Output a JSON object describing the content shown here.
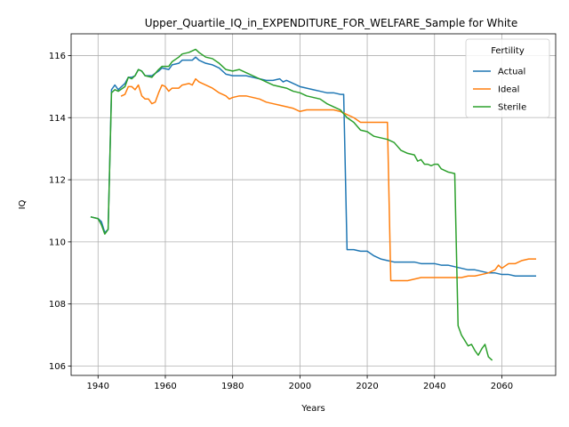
{
  "chart_data": {
    "type": "line",
    "title": "Upper_Quartile_IQ_in_EXPENDITURE_FOR_WELFARE_Sample for White",
    "xlabel": "Years",
    "ylabel": "IQ",
    "xlim": [
      1932,
      2076
    ],
    "ylim": [
      105.7,
      116.7
    ],
    "xticks": [
      1940,
      1960,
      1980,
      2000,
      2020,
      2040,
      2060
    ],
    "yticks": [
      106,
      108,
      110,
      112,
      114,
      116
    ],
    "grid": true,
    "legend": {
      "title": "Fertility",
      "placement": "top-right"
    },
    "series": [
      {
        "name": "Actual",
        "color": "#1f77b4",
        "points": [
          [
            1938,
            110.8
          ],
          [
            1940,
            110.75
          ],
          [
            1941,
            110.65
          ],
          [
            1942,
            110.3
          ],
          [
            1943,
            110.4
          ],
          [
            1944,
            114.9
          ],
          [
            1945,
            115.05
          ],
          [
            1946,
            114.9
          ],
          [
            1948,
            115.1
          ],
          [
            1949,
            115.3
          ],
          [
            1950,
            115.3
          ],
          [
            1951,
            115.35
          ],
          [
            1952,
            115.55
          ],
          [
            1953,
            115.5
          ],
          [
            1954,
            115.35
          ],
          [
            1956,
            115.35
          ],
          [
            1958,
            115.5
          ],
          [
            1959,
            115.6
          ],
          [
            1961,
            115.55
          ],
          [
            1962,
            115.7
          ],
          [
            1964,
            115.75
          ],
          [
            1965,
            115.85
          ],
          [
            1967,
            115.85
          ],
          [
            1968,
            115.85
          ],
          [
            1969,
            115.95
          ],
          [
            1970,
            115.85
          ],
          [
            1972,
            115.75
          ],
          [
            1974,
            115.7
          ],
          [
            1976,
            115.6
          ],
          [
            1978,
            115.4
          ],
          [
            1980,
            115.35
          ],
          [
            1982,
            115.35
          ],
          [
            1984,
            115.35
          ],
          [
            1986,
            115.3
          ],
          [
            1988,
            115.25
          ],
          [
            1990,
            115.2
          ],
          [
            1992,
            115.2
          ],
          [
            1994,
            115.25
          ],
          [
            1995,
            115.15
          ],
          [
            1996,
            115.2
          ],
          [
            1998,
            115.1
          ],
          [
            2000,
            115.0
          ],
          [
            2002,
            114.95
          ],
          [
            2004,
            114.9
          ],
          [
            2006,
            114.85
          ],
          [
            2008,
            114.8
          ],
          [
            2010,
            114.8
          ],
          [
            2012,
            114.75
          ],
          [
            2013,
            114.75
          ],
          [
            2014,
            109.75
          ],
          [
            2016,
            109.75
          ],
          [
            2018,
            109.7
          ],
          [
            2020,
            109.7
          ],
          [
            2022,
            109.55
          ],
          [
            2024,
            109.45
          ],
          [
            2026,
            109.4
          ],
          [
            2028,
            109.35
          ],
          [
            2030,
            109.35
          ],
          [
            2032,
            109.35
          ],
          [
            2034,
            109.35
          ],
          [
            2036,
            109.3
          ],
          [
            2038,
            109.3
          ],
          [
            2040,
            109.3
          ],
          [
            2042,
            109.25
          ],
          [
            2044,
            109.25
          ],
          [
            2046,
            109.2
          ],
          [
            2048,
            109.15
          ],
          [
            2050,
            109.1
          ],
          [
            2052,
            109.1
          ],
          [
            2054,
            109.05
          ],
          [
            2056,
            109.0
          ],
          [
            2058,
            109.0
          ],
          [
            2060,
            108.95
          ],
          [
            2062,
            108.95
          ],
          [
            2064,
            108.9
          ],
          [
            2066,
            108.9
          ],
          [
            2068,
            108.9
          ],
          [
            2070,
            108.9
          ]
        ]
      },
      {
        "name": "Ideal",
        "color": "#ff7f0e",
        "points": [
          [
            1947,
            114.7
          ],
          [
            1948,
            114.75
          ],
          [
            1949,
            115.0
          ],
          [
            1950,
            115.0
          ],
          [
            1951,
            114.9
          ],
          [
            1952,
            115.05
          ],
          [
            1953,
            114.7
          ],
          [
            1954,
            114.6
          ],
          [
            1955,
            114.6
          ],
          [
            1956,
            114.45
          ],
          [
            1957,
            114.5
          ],
          [
            1958,
            114.8
          ],
          [
            1959,
            115.05
          ],
          [
            1960,
            115.0
          ],
          [
            1961,
            114.85
          ],
          [
            1962,
            114.95
          ],
          [
            1964,
            114.95
          ],
          [
            1965,
            115.05
          ],
          [
            1967,
            115.1
          ],
          [
            1968,
            115.05
          ],
          [
            1969,
            115.25
          ],
          [
            1970,
            115.15
          ],
          [
            1972,
            115.05
          ],
          [
            1974,
            114.95
          ],
          [
            1976,
            114.8
          ],
          [
            1978,
            114.7
          ],
          [
            1979,
            114.6
          ],
          [
            1980,
            114.65
          ],
          [
            1982,
            114.7
          ],
          [
            1984,
            114.7
          ],
          [
            1986,
            114.65
          ],
          [
            1988,
            114.6
          ],
          [
            1990,
            114.5
          ],
          [
            1992,
            114.45
          ],
          [
            1994,
            114.4
          ],
          [
            1996,
            114.35
          ],
          [
            1998,
            114.3
          ],
          [
            2000,
            114.2
          ],
          [
            2002,
            114.25
          ],
          [
            2004,
            114.25
          ],
          [
            2006,
            114.25
          ],
          [
            2008,
            114.25
          ],
          [
            2010,
            114.25
          ],
          [
            2012,
            114.2
          ],
          [
            2014,
            114.1
          ],
          [
            2016,
            114.0
          ],
          [
            2018,
            113.85
          ],
          [
            2020,
            113.85
          ],
          [
            2022,
            113.85
          ],
          [
            2024,
            113.85
          ],
          [
            2026,
            113.85
          ],
          [
            2027,
            108.75
          ],
          [
            2028,
            108.75
          ],
          [
            2030,
            108.75
          ],
          [
            2032,
            108.75
          ],
          [
            2034,
            108.8
          ],
          [
            2036,
            108.85
          ],
          [
            2038,
            108.85
          ],
          [
            2040,
            108.85
          ],
          [
            2042,
            108.85
          ],
          [
            2044,
            108.85
          ],
          [
            2046,
            108.85
          ],
          [
            2048,
            108.85
          ],
          [
            2050,
            108.9
          ],
          [
            2052,
            108.9
          ],
          [
            2054,
            108.95
          ],
          [
            2056,
            109.0
          ],
          [
            2058,
            109.1
          ],
          [
            2059,
            109.25
          ],
          [
            2060,
            109.15
          ],
          [
            2062,
            109.3
          ],
          [
            2064,
            109.3
          ],
          [
            2066,
            109.4
          ],
          [
            2068,
            109.45
          ],
          [
            2070,
            109.45
          ]
        ]
      },
      {
        "name": "Sterile",
        "color": "#2ca02c",
        "points": [
          [
            1938,
            110.8
          ],
          [
            1940,
            110.75
          ],
          [
            1941,
            110.55
          ],
          [
            1942,
            110.25
          ],
          [
            1943,
            110.4
          ],
          [
            1944,
            114.8
          ],
          [
            1945,
            114.9
          ],
          [
            1946,
            114.85
          ],
          [
            1948,
            115.0
          ],
          [
            1949,
            115.3
          ],
          [
            1950,
            115.25
          ],
          [
            1951,
            115.35
          ],
          [
            1952,
            115.55
          ],
          [
            1953,
            115.5
          ],
          [
            1954,
            115.35
          ],
          [
            1956,
            115.3
          ],
          [
            1958,
            115.55
          ],
          [
            1959,
            115.65
          ],
          [
            1961,
            115.65
          ],
          [
            1962,
            115.8
          ],
          [
            1964,
            115.95
          ],
          [
            1965,
            116.05
          ],
          [
            1967,
            116.1
          ],
          [
            1968,
            116.15
          ],
          [
            1969,
            116.2
          ],
          [
            1970,
            116.1
          ],
          [
            1972,
            115.95
          ],
          [
            1974,
            115.9
          ],
          [
            1976,
            115.75
          ],
          [
            1978,
            115.55
          ],
          [
            1980,
            115.5
          ],
          [
            1982,
            115.55
          ],
          [
            1984,
            115.45
          ],
          [
            1986,
            115.35
          ],
          [
            1988,
            115.25
          ],
          [
            1990,
            115.15
          ],
          [
            1992,
            115.05
          ],
          [
            1994,
            115.0
          ],
          [
            1996,
            114.95
          ],
          [
            1998,
            114.85
          ],
          [
            2000,
            114.8
          ],
          [
            2002,
            114.7
          ],
          [
            2004,
            114.65
          ],
          [
            2006,
            114.6
          ],
          [
            2008,
            114.45
          ],
          [
            2010,
            114.35
          ],
          [
            2012,
            114.25
          ],
          [
            2014,
            114.0
          ],
          [
            2016,
            113.85
          ],
          [
            2018,
            113.6
          ],
          [
            2020,
            113.55
          ],
          [
            2022,
            113.4
          ],
          [
            2024,
            113.35
          ],
          [
            2026,
            113.3
          ],
          [
            2028,
            113.2
          ],
          [
            2030,
            112.95
          ],
          [
            2032,
            112.85
          ],
          [
            2034,
            112.8
          ],
          [
            2035,
            112.6
          ],
          [
            2036,
            112.65
          ],
          [
            2037,
            112.5
          ],
          [
            2038,
            112.5
          ],
          [
            2039,
            112.45
          ],
          [
            2040,
            112.5
          ],
          [
            2041,
            112.5
          ],
          [
            2042,
            112.35
          ],
          [
            2044,
            112.25
          ],
          [
            2046,
            112.2
          ],
          [
            2047,
            107.3
          ],
          [
            2048,
            107.0
          ],
          [
            2050,
            106.65
          ],
          [
            2051,
            106.7
          ],
          [
            2052,
            106.5
          ],
          [
            2053,
            106.35
          ],
          [
            2054,
            106.55
          ],
          [
            2055,
            106.7
          ],
          [
            2056,
            106.3
          ],
          [
            2057,
            106.2
          ]
        ]
      }
    ]
  },
  "colors": {
    "background": "#ffffff",
    "axes": "#000000",
    "grid": "#b0b0b0",
    "legend_border": "#cccccc"
  }
}
